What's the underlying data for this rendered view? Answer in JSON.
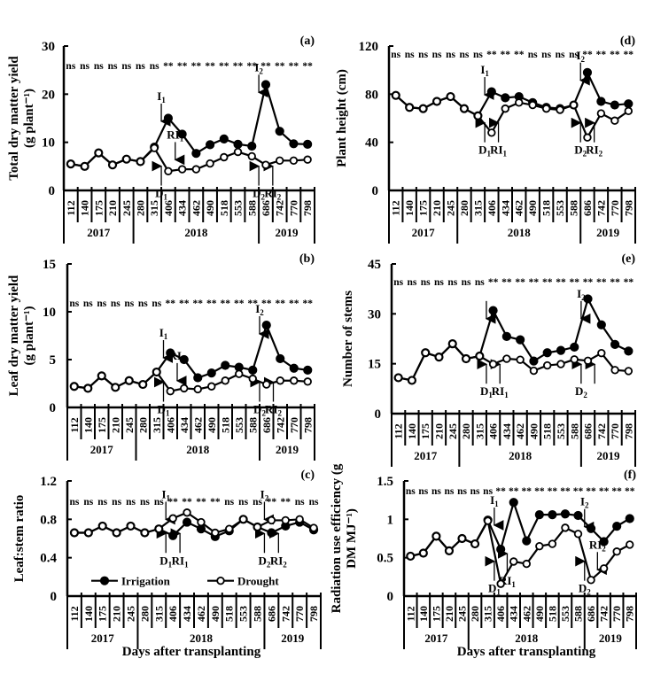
{
  "figure": {
    "shared_x_label": "Days after transplanting",
    "legend": [
      {
        "name": "Irrigation",
        "marker": "filled-circle"
      },
      {
        "name": "Drought",
        "marker": "open-circle"
      }
    ],
    "colors": {
      "line": "#000000",
      "background": "#ffffff"
    }
  },
  "chart_data": [
    {
      "id": "a",
      "panel_label": "(a)",
      "type": "line",
      "ylabel": "Total dry matter yield (g plant⁻¹)",
      "ylabel_lines": [
        "Total dry matter yield",
        "(g plant⁻¹)"
      ],
      "ylim": [
        0,
        30
      ],
      "yticks": [
        0,
        10,
        20,
        30
      ],
      "ytick_labels": [
        "0",
        "10",
        "20",
        "30"
      ],
      "x": [
        "112",
        "140",
        "175",
        "210",
        "245",
        "280",
        "315",
        "406",
        "434",
        "462",
        "490",
        "518",
        "553",
        "588",
        "686",
        "742",
        "770",
        "798"
      ],
      "year_groups": [
        {
          "label": "2017",
          "count": 5
        },
        {
          "label": "2018",
          "count": 9
        },
        {
          "label": "2019",
          "count": 4
        }
      ],
      "significance": [
        "ns",
        "ns",
        "ns",
        "ns",
        "ns",
        "ns",
        "ns",
        "**",
        "**",
        "**",
        "**",
        "**",
        "**",
        "**",
        "**",
        "**",
        "**",
        "**"
      ],
      "series": [
        {
          "name": "Irrigation",
          "values": [
            5.5,
            5.0,
            7.8,
            5.3,
            6.5,
            6.0,
            9.0,
            15.0,
            11.7,
            7.7,
            9.5,
            10.7,
            9.6,
            9.2,
            22.0,
            12.3,
            9.7,
            9.6
          ]
        },
        {
          "name": "Drought",
          "values": [
            5.5,
            5.0,
            7.8,
            5.3,
            6.5,
            6.0,
            8.8,
            4.0,
            4.4,
            4.4,
            5.6,
            6.9,
            8.0,
            7.1,
            5.3,
            6.2,
            6.2,
            6.4
          ]
        }
      ],
      "annotations": [
        {
          "text": "I",
          "sub": "1",
          "dir": "down",
          "at": 6.5,
          "value": 14
        },
        {
          "text": "D",
          "sub": "1",
          "dir": "up",
          "at": 6.5,
          "value": 1
        },
        {
          "text": "RI",
          "sub": "1",
          "dir": "down",
          "at": 7.5,
          "value": 6
        },
        {
          "text": "I",
          "sub": "2",
          "dir": "down",
          "at": 13.5,
          "value": 20
        },
        {
          "text": "D",
          "sub": "2",
          "dir": "up",
          "at": 13.5,
          "value": 1
        },
        {
          "text": "RI",
          "sub": "2",
          "dir": "up",
          "at": 14.5,
          "value": 1
        }
      ]
    },
    {
      "id": "d",
      "panel_label": "(d)",
      "type": "line",
      "ylabel": "Plant height (cm)",
      "ylabel_lines": [
        "Plant height (cm)"
      ],
      "ylim": [
        0,
        120
      ],
      "yticks": [
        0,
        40,
        80,
        120
      ],
      "ytick_labels": [
        "0",
        "40",
        "80",
        "120"
      ],
      "x": [
        "112",
        "140",
        "175",
        "210",
        "245",
        "280",
        "315",
        "406",
        "434",
        "462",
        "490",
        "518",
        "553",
        "588",
        "686",
        "742",
        "770",
        "798"
      ],
      "year_groups": [
        {
          "label": "2017",
          "count": 5
        },
        {
          "label": "2018",
          "count": 9
        },
        {
          "label": "2019",
          "count": 4
        }
      ],
      "significance": [
        "ns",
        "ns",
        "ns",
        "ns",
        "ns",
        "ns",
        "ns",
        "**",
        "**",
        "**",
        "ns",
        "ns",
        "ns",
        "ns",
        "**",
        "**",
        "**",
        "**"
      ],
      "series": [
        {
          "name": "Irrigation",
          "values": [
            79,
            69,
            68,
            74,
            78,
            68,
            62,
            82,
            77,
            78,
            73,
            69,
            68,
            71,
            98,
            74,
            71,
            72
          ]
        },
        {
          "name": "Drought",
          "values": [
            79,
            69,
            68,
            74,
            78,
            68,
            62,
            48,
            68,
            73,
            71,
            68,
            67,
            71,
            44,
            64,
            58,
            66
          ]
        }
      ],
      "annotations": [
        {
          "text": "I",
          "sub": "1",
          "dir": "down",
          "at": 6.5,
          "value": 78
        },
        {
          "text": "D",
          "sub": "1",
          "dir": "up",
          "at": 6.5,
          "value": 40
        },
        {
          "text": "RI",
          "sub": "1",
          "dir": "up",
          "at": 7.5,
          "value": 40
        },
        {
          "text": "I",
          "sub": "2",
          "dir": "down",
          "at": 13.5,
          "value": 90
        },
        {
          "text": "D",
          "sub": "2",
          "dir": "up",
          "at": 13.5,
          "value": 40
        },
        {
          "text": "RI",
          "sub": "2",
          "dir": "up",
          "at": 14.5,
          "value": 40
        }
      ]
    },
    {
      "id": "b",
      "panel_label": "(b)",
      "type": "line",
      "ylabel": "Leaf dry matter yield (g plant⁻¹)",
      "ylabel_lines": [
        "Leaf dry matter yield",
        "(g plant⁻¹)"
      ],
      "ylim": [
        0,
        15
      ],
      "yticks": [
        0,
        5,
        10,
        15
      ],
      "ytick_labels": [
        "0",
        "5",
        "10",
        "15"
      ],
      "x": [
        "112",
        "140",
        "175",
        "210",
        "245",
        "280",
        "315",
        "406",
        "434",
        "462",
        "490",
        "518",
        "553",
        "588",
        "686",
        "742",
        "770",
        "798"
      ],
      "year_groups": [
        {
          "label": "2017",
          "count": 5
        },
        {
          "label": "2018",
          "count": 9
        },
        {
          "label": "2019",
          "count": 4
        }
      ],
      "significance": [
        "ns",
        "ns",
        "ns",
        "ns",
        "ns",
        "ns",
        "ns",
        "**",
        "**",
        "**",
        "**",
        "**",
        "**",
        "**",
        "**",
        "**",
        "**",
        "**"
      ],
      "series": [
        {
          "name": "Irrigation",
          "values": [
            2.2,
            2.0,
            3.3,
            2.1,
            2.8,
            2.4,
            3.7,
            5.7,
            5.0,
            3.1,
            3.6,
            4.4,
            4.2,
            3.9,
            8.6,
            5.1,
            4.1,
            3.9
          ]
        },
        {
          "name": "Drought",
          "values": [
            2.2,
            2.0,
            3.3,
            2.1,
            2.8,
            2.4,
            3.7,
            1.7,
            2.0,
            1.9,
            2.2,
            2.8,
            3.5,
            3.0,
            2.4,
            2.8,
            2.8,
            2.7
          ]
        }
      ],
      "annotations": [
        {
          "text": "I",
          "sub": "1",
          "dir": "down",
          "at": 6.5,
          "value": 5
        },
        {
          "text": "D",
          "sub": "1",
          "dir": "up",
          "at": 6.5,
          "value": 0.6
        },
        {
          "text": "RI",
          "sub": "1",
          "dir": "down",
          "at": 7.5,
          "value": 2.6
        },
        {
          "text": "I",
          "sub": "2",
          "dir": "down",
          "at": 13.5,
          "value": 7.5
        },
        {
          "text": "D",
          "sub": "2",
          "dir": "up",
          "at": 13.5,
          "value": 0.6
        },
        {
          "text": "RI",
          "sub": "2",
          "dir": "up",
          "at": 14.5,
          "value": 0.6
        }
      ]
    },
    {
      "id": "e",
      "panel_label": "(e)",
      "type": "line",
      "ylabel": "Number of stems",
      "ylabel_lines": [
        "Number of stems"
      ],
      "ylim": [
        0,
        45
      ],
      "yticks": [
        0,
        15,
        30,
        45
      ],
      "ytick_labels": [
        "0",
        "15",
        "30",
        "45"
      ],
      "x": [
        "112",
        "140",
        "175",
        "210",
        "245",
        "280",
        "315",
        "406",
        "434",
        "462",
        "490",
        "518",
        "553",
        "588",
        "686",
        "742",
        "770",
        "798"
      ],
      "year_groups": [
        {
          "label": "2017",
          "count": 5
        },
        {
          "label": "2018",
          "count": 9
        },
        {
          "label": "2019",
          "count": 4
        }
      ],
      "significance": [
        "ns",
        "ns",
        "ns",
        "ns",
        "ns",
        "ns",
        "ns",
        "**",
        "**",
        "**",
        "**",
        "**",
        "**",
        "**",
        "**",
        "**",
        "**",
        "**"
      ],
      "series": [
        {
          "name": "Irrigation",
          "values": [
            10.8,
            10.0,
            18.3,
            17.0,
            21.0,
            16.5,
            17.3,
            31.0,
            23.2,
            22.2,
            15.8,
            18.3,
            19.0,
            20.0,
            34.5,
            26.7,
            20.8,
            18.8
          ]
        },
        {
          "name": "Drought",
          "values": [
            10.8,
            10.0,
            18.3,
            17.0,
            21.0,
            16.5,
            17.3,
            14.9,
            16.5,
            16.2,
            12.9,
            14.5,
            14.9,
            16.3,
            15.9,
            18.2,
            13.1,
            12.8
          ]
        }
      ],
      "annotations": [
        {
          "text": "",
          "sub": "",
          "dir": "down",
          "at": 6.5,
          "value": 28
        },
        {
          "text": "D",
          "sub": "1",
          "dir": "up",
          "at": 6.5,
          "value": 9
        },
        {
          "text": "RI",
          "sub": "1",
          "dir": "up",
          "at": 7.5,
          "value": 9
        },
        {
          "text": "I",
          "sub": "2",
          "dir": "down",
          "at": 13.5,
          "value": 28
        },
        {
          "text": "D",
          "sub": "2",
          "dir": "up",
          "at": 13.5,
          "value": 9
        },
        {
          "text": "",
          "sub": "",
          "dir": "up",
          "at": 14.5,
          "value": 9
        }
      ]
    },
    {
      "id": "c",
      "panel_label": "(c)",
      "type": "line",
      "ylabel": "Leaf:stem ratio",
      "ylabel_lines": [
        "Leaf:stem ratio"
      ],
      "ylim": [
        0,
        1.2
      ],
      "yticks": [
        0,
        0.4,
        0.8,
        1.2
      ],
      "ytick_labels": [
        "0",
        "0.4",
        "0.8",
        "1.2"
      ],
      "x": [
        "112",
        "140",
        "175",
        "210",
        "245",
        "280",
        "315",
        "406",
        "434",
        "462",
        "490",
        "518",
        "553",
        "588",
        "686",
        "742",
        "770",
        "798"
      ],
      "year_groups": [
        {
          "label": "2017",
          "count": 5
        },
        {
          "label": "2018",
          "count": 9
        },
        {
          "label": "2019",
          "count": 4
        }
      ],
      "significance": [
        "ns",
        "ns",
        "ns",
        "ns",
        "ns",
        "ns",
        "ns",
        "**",
        "**",
        "**",
        "**",
        "ns",
        "ns",
        "ns",
        "**",
        "**",
        "ns",
        "ns"
      ],
      "legend": {
        "placement": "bottom-left",
        "entries": [
          "Irrigation",
          "Drought"
        ]
      },
      "series": [
        {
          "name": "Irrigation",
          "values": [
            0.66,
            0.66,
            0.73,
            0.66,
            0.73,
            0.66,
            0.7,
            0.63,
            0.77,
            0.7,
            0.62,
            0.68,
            0.8,
            0.72,
            0.66,
            0.73,
            0.77,
            0.69
          ]
        },
        {
          "name": "Drought",
          "values": [
            0.66,
            0.66,
            0.73,
            0.66,
            0.73,
            0.66,
            0.7,
            0.81,
            0.87,
            0.77,
            0.66,
            0.7,
            0.8,
            0.72,
            0.79,
            0.79,
            0.8,
            0.71
          ]
        }
      ],
      "annotations": [
        {
          "text": "I",
          "sub": "1",
          "dir": "down",
          "at": 6.5,
          "value": 0.78
        },
        {
          "text": "D",
          "sub": "1",
          "dir": "up",
          "at": 6.5,
          "value": 0.45
        },
        {
          "text": "RI",
          "sub": "1",
          "dir": "up",
          "at": 7.5,
          "value": 0.45
        },
        {
          "text": "I",
          "sub": "2",
          "dir": "down",
          "at": 13.5,
          "value": 0.78
        },
        {
          "text": "D",
          "sub": "2",
          "dir": "up",
          "at": 13.5,
          "value": 0.45
        },
        {
          "text": "RI",
          "sub": "2",
          "dir": "up",
          "at": 14.5,
          "value": 0.45
        }
      ]
    },
    {
      "id": "f",
      "panel_label": "(f)",
      "type": "line",
      "ylabel": "Radiation use efficiency (g DM MJ⁻¹)",
      "ylabel_lines": [
        "Radiation use efficiency (g",
        "DM MJ⁻¹)"
      ],
      "ylim": [
        0,
        1.5
      ],
      "yticks": [
        0,
        0.5,
        1,
        1.5
      ],
      "ytick_labels": [
        "0",
        "0.5",
        "1",
        "1.5"
      ],
      "x": [
        "112",
        "140",
        "175",
        "210",
        "245",
        "280",
        "315",
        "406",
        "434",
        "462",
        "490",
        "518",
        "553",
        "588",
        "686",
        "742",
        "770",
        "798"
      ],
      "year_groups": [
        {
          "label": "2017",
          "count": 5
        },
        {
          "label": "2018",
          "count": 9
        },
        {
          "label": "2019",
          "count": 4
        }
      ],
      "significance": [
        "ns",
        "ns",
        "ns",
        "ns",
        "ns",
        "ns",
        "ns",
        "**",
        "**",
        "**",
        "**",
        "**",
        "**",
        "**",
        "**",
        "**",
        "**",
        "**"
      ],
      "series": [
        {
          "name": "Irrigation",
          "values": [
            0.52,
            0.56,
            0.78,
            0.59,
            0.75,
            0.68,
            0.99,
            0.61,
            1.22,
            0.72,
            1.06,
            1.06,
            1.07,
            1.05,
            0.88,
            0.71,
            0.91,
            1.01
          ]
        },
        {
          "name": "Drought",
          "values": [
            0.52,
            0.56,
            0.78,
            0.59,
            0.75,
            0.68,
            0.98,
            0.16,
            0.45,
            0.42,
            0.65,
            0.68,
            0.89,
            0.81,
            0.21,
            0.36,
            0.58,
            0.67
          ]
        }
      ],
      "annotations": [
        {
          "text": "I",
          "sub": "1",
          "dir": "down",
          "at": 6.5,
          "value": 0.9
        },
        {
          "text": "D",
          "sub": "1",
          "dir": "up",
          "at": 6.5,
          "value": 0.2
        },
        {
          "text": "RI",
          "sub": "1",
          "dir": "up",
          "at": 7.5,
          "value": 0.3
        },
        {
          "text": "I",
          "sub": "2",
          "dir": "down",
          "at": 13.5,
          "value": 0.88
        },
        {
          "text": "D",
          "sub": "2",
          "dir": "up",
          "at": 13.5,
          "value": 0.2
        },
        {
          "text": "RI",
          "sub": "2",
          "dir": "down",
          "at": 14.5,
          "value": 0.32
        }
      ]
    }
  ]
}
